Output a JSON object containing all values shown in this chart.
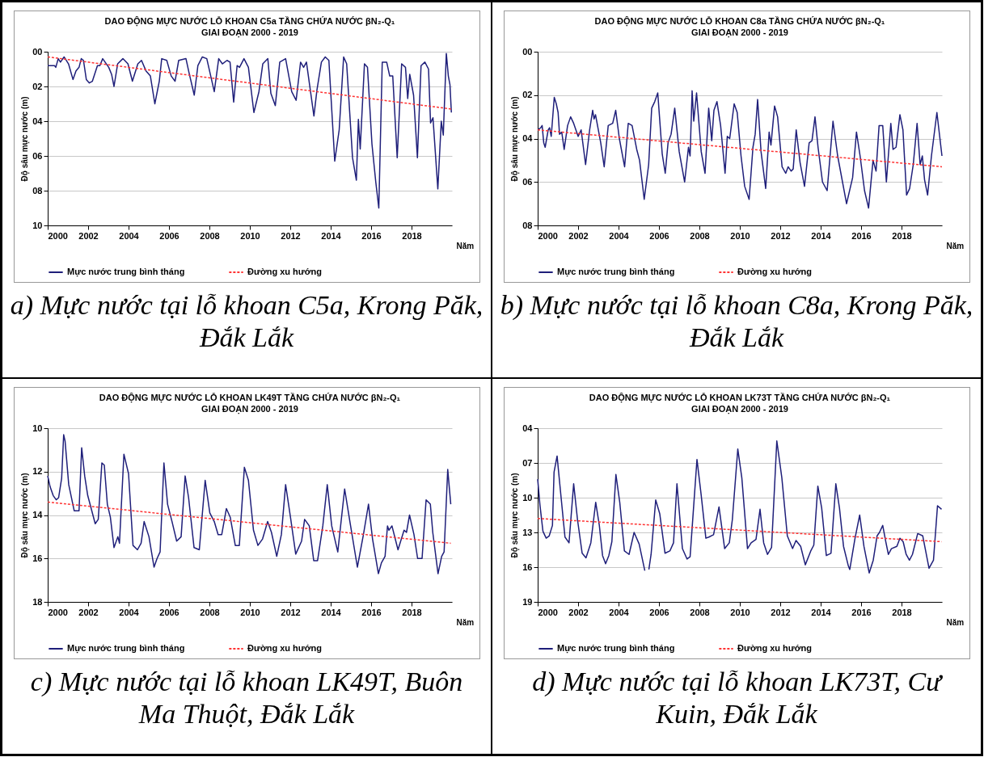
{
  "chart_data": [
    {
      "type": "line",
      "title": "DAO ĐỘNG MỰC NƯỚC LỖ KHOAN C5a TẦNG CHỨA NƯỚC βN₂-Q₁",
      "subtitle": "GIAI ĐOẠN 2000 - 2019",
      "xlabel": "Năm",
      "ylabel": "Độ sâu mực nước (m)",
      "annotations": [
        "a) Mực nước tại lỗ khoan C5a, Krong Păk, Đắk Lắk"
      ],
      "xlim": [
        2000,
        2020
      ],
      "xticks": [
        2000,
        2002,
        2004,
        2006,
        2008,
        2010,
        2012,
        2014,
        2016,
        2018
      ],
      "ylim": [
        10,
        0
      ],
      "yticks": [
        {
          "value": 0,
          "label": "00"
        },
        {
          "value": 2,
          "label": "02"
        },
        {
          "value": 4,
          "label": "04"
        },
        {
          "value": 6,
          "label": "06"
        },
        {
          "value": 8,
          "label": "08"
        },
        10
      ],
      "grid": "y",
      "legend": "bottom",
      "series": [
        {
          "name": "Mực nước trung bình tháng",
          "color": "#1f1f7a",
          "line_style": "solid",
          "x": [
            2000,
            2000.34,
            2000.4,
            2000.52,
            2000.63,
            2000.81,
            2001.03,
            2001.25,
            2001.4,
            2001.55,
            2001.66,
            2001.77,
            2001.91,
            2002.06,
            2002.21,
            2002.46,
            2002.58,
            2002.72,
            2003.02,
            2003.16,
            2003.28,
            2003.46,
            2003.72,
            2003.97,
            2004.19,
            2004.46,
            2004.64,
            2004.86,
            2005.08,
            2005.3,
            2005.52,
            2005.64,
            2005.89,
            2006.11,
            2006.3,
            2006.48,
            2006.84,
            2006.99,
            2007.25,
            2007.43,
            2007.65,
            2007.87,
            2008.24,
            2008.46,
            2008.64,
            2008.87,
            2009.02,
            2009.2,
            2009.37,
            2009.49,
            2009.71,
            2009.93,
            2010.2,
            2010.45,
            2010.64,
            2010.89,
            2011.04,
            2011.26,
            2011.48,
            2011.77,
            2012.07,
            2012.29,
            2012.51,
            2012.66,
            2012.8,
            2013.17,
            2013.32,
            2013.54,
            2013.73,
            2013.91,
            2014.2,
            2014.42,
            2014.64,
            2014.79,
            2015.08,
            2015.27,
            2015.37,
            2015.46,
            2015.67,
            2015.82,
            2016.04,
            2016.23,
            2016.38,
            2016.55,
            2016.77,
            2016.92,
            2017.07,
            2017.29,
            2017.51,
            2017.7,
            2017.81,
            2017.91,
            2018.1,
            2018.29,
            2018.47,
            2018.66,
            2018.84,
            2018.94,
            2019.06,
            2019.3,
            2019.47,
            2019.57,
            2019.72,
            2019.82,
            2019.9,
            2019.97
          ],
          "values": [
            0.8,
            0.8,
            0.9,
            0.4,
            0.6,
            0.3,
            0.7,
            1.6,
            1.1,
            0.9,
            0.4,
            0.5,
            1.6,
            1.8,
            1.7,
            0.8,
            0.8,
            0.4,
            0.9,
            1.3,
            2.0,
            0.7,
            0.4,
            0.7,
            1.7,
            0.7,
            0.5,
            1.1,
            1.4,
            3.0,
            1.7,
            0.4,
            0.5,
            1.4,
            1.7,
            0.5,
            0.4,
            1.2,
            2.5,
            0.8,
            0.3,
            0.4,
            2.3,
            0.4,
            0.7,
            0.5,
            0.6,
            2.9,
            0.8,
            0.9,
            0.4,
            0.9,
            3.5,
            2.3,
            0.7,
            0.4,
            2.4,
            3.1,
            0.6,
            0.4,
            2.3,
            2.8,
            0.6,
            0.9,
            0.6,
            3.7,
            2.2,
            0.6,
            0.3,
            0.5,
            6.3,
            4.5,
            0.3,
            0.7,
            6.1,
            7.4,
            3.9,
            5.6,
            0.7,
            0.9,
            5.3,
            7.5,
            9.0,
            0.6,
            0.6,
            1.4,
            1.4,
            6.1,
            0.7,
            0.9,
            2.7,
            1.3,
            2.5,
            6.1,
            0.8,
            0.6,
            1.0,
            4.1,
            3.8,
            7.9,
            4.0,
            4.8,
            0.1,
            1.4,
            1.9,
            3.5
          ]
        },
        {
          "name": "Đường xu hướng",
          "color": "#ff3333",
          "line_style": "dashed",
          "x": [
            2000,
            2019.97
          ],
          "values": [
            0.3,
            3.3
          ]
        }
      ]
    },
    {
      "type": "line",
      "title": "DAO ĐỘNG MỰC NƯỚC LỖ KHOAN C8a TẦNG CHỨA NƯỚC βN₂-Q₁",
      "subtitle": "GIAI ĐOẠN 2000 - 2019",
      "xlabel": "Năm",
      "ylabel": "Độ sâu mực nước (m)",
      "annotations": [
        "b) Mực nước tại lỗ khoan C8a, Krong Păk, Đắk Lắk"
      ],
      "xlim": [
        2000,
        2020
      ],
      "xticks": [
        2000,
        2002,
        2004,
        2006,
        2008,
        2010,
        2012,
        2014,
        2016,
        2018
      ],
      "ylim": [
        8,
        0
      ],
      "yticks": [
        {
          "value": 0,
          "label": "00"
        },
        {
          "value": 2,
          "label": "02"
        },
        {
          "value": 4,
          "label": "04"
        },
        {
          "value": 6,
          "label": "06"
        },
        {
          "value": 8,
          "label": "08"
        }
      ],
      "grid": "y",
      "legend": "bottom",
      "series": [
        {
          "name": "Mực nước trung bình tháng",
          "color": "#1f1f7a",
          "line_style": "solid",
          "x": [
            2000,
            2000.15,
            2000.22,
            2000.3,
            2000.37,
            2000.52,
            2000.59,
            2000.67,
            2000.82,
            2000.92,
            2001.01,
            2001.08,
            2001.19,
            2001.31,
            2001.48,
            2001.63,
            2001.78,
            2002,
            2002.15,
            2002.37,
            2002.57,
            2002.72,
            2002.79,
            2002.86,
            2003.12,
            2003.29,
            2003.49,
            2003.71,
            2003.86,
            2004.04,
            2004.3,
            2004.48,
            2004.67,
            2004.9,
            2005.04,
            2005.27,
            2005.49,
            2005.64,
            2005.79,
            2005.94,
            2006.16,
            2006.31,
            2006.45,
            2006.6,
            2006.78,
            2007,
            2007.27,
            2007.46,
            2007.54,
            2007.64,
            2007.72,
            2007.86,
            2008.09,
            2008.28,
            2008.46,
            2008.61,
            2008.72,
            2008.87,
            2009.05,
            2009.27,
            2009.38,
            2009.5,
            2009.72,
            2009.87,
            2010.06,
            2010.24,
            2010.46,
            2010.65,
            2010.76,
            2010.88,
            2011.05,
            2011.28,
            2011.45,
            2011.54,
            2011.72,
            2011.87,
            2012.09,
            2012.27,
            2012.39,
            2012.54,
            2012.64,
            2012.79,
            2012.98,
            2013.2,
            2013.43,
            2013.57,
            2013.72,
            2013.87,
            2014.09,
            2014.32,
            2014.61,
            2014.84,
            2015.28,
            2015.58,
            2015.77,
            2015.95,
            2016.17,
            2016.37,
            2016.59,
            2016.74,
            2016.89,
            2017.07,
            2017.25,
            2017.47,
            2017.58,
            2017.73,
            2017.92,
            2018.07,
            2018.25,
            2018.4,
            2018.58,
            2018.77,
            2018.92,
            2019.03,
            2019.14,
            2019.29,
            2019.48,
            2019.75,
            2020
          ],
          "values": [
            3.6,
            3.5,
            3.4,
            4.2,
            4.4,
            3.6,
            3.5,
            3.9,
            2.1,
            2.4,
            2.8,
            3.8,
            3.7,
            4.5,
            3.4,
            3.0,
            3.3,
            3.9,
            3.6,
            5.2,
            3.6,
            2.7,
            3.1,
            2.9,
            4.2,
            5.3,
            3.4,
            3.3,
            2.7,
            4.0,
            5.3,
            3.3,
            3.4,
            4.5,
            5.0,
            6.8,
            5.2,
            2.6,
            2.3,
            1.9,
            4.7,
            5.6,
            4.2,
            3.8,
            2.6,
            4.6,
            6.0,
            4.4,
            4.8,
            1.8,
            3.2,
            1.9,
            4.6,
            5.6,
            2.6,
            4.1,
            2.7,
            2.3,
            3.4,
            5.6,
            3.9,
            4.0,
            2.4,
            2.8,
            4.8,
            6.2,
            6.8,
            4.4,
            3.8,
            2.2,
            4.6,
            6.3,
            3.7,
            4.3,
            2.5,
            3.0,
            5.3,
            5.6,
            5.3,
            5.5,
            5.4,
            3.6,
            5.1,
            6.2,
            4.2,
            4.1,
            3.0,
            4.4,
            6.0,
            6.4,
            3.2,
            4.8,
            7.0,
            5.8,
            3.7,
            4.8,
            6.4,
            7.2,
            5.0,
            5.5,
            3.4,
            3.4,
            6.0,
            3.3,
            4.5,
            4.4,
            2.9,
            3.6,
            6.6,
            6.3,
            5.2,
            3.3,
            5.2,
            4.8,
            5.9,
            6.6,
            4.8,
            2.8,
            4.8
          ]
        },
        {
          "name": "Đường xu hướng",
          "color": "#ff3333",
          "line_style": "dashed",
          "x": [
            2000,
            2020
          ],
          "values": [
            3.6,
            5.3
          ]
        }
      ]
    },
    {
      "type": "line",
      "title": "DAO ĐỘNG MỰC NƯỚC LỖ KHOAN LK49T TẦNG CHỨA NƯỚC βN₂-Q₁",
      "subtitle": "GIAI ĐOẠN 2000 - 2019",
      "xlabel": "Năm",
      "ylabel": "Độ sâu mực nước (m)",
      "annotations": [
        "c) Mực nước tại lỗ khoan LK49T, Buôn Ma Thuột, Đắk Lắk"
      ],
      "xlim": [
        2000,
        2020
      ],
      "xticks": [
        2000,
        2002,
        2004,
        2006,
        2008,
        2010,
        2012,
        2014,
        2016,
        2018
      ],
      "ylim": [
        18,
        10
      ],
      "yticks": [
        10,
        12,
        14,
        16,
        18
      ],
      "grid": "y",
      "legend": "bottom",
      "series": [
        {
          "name": "Mực nước trung bình tháng",
          "color": "#1f1f7a",
          "line_style": "solid",
          "x": [
            2000,
            2000.12,
            2000.27,
            2000.42,
            2000.54,
            2000.69,
            2000.79,
            2000.86,
            2001.04,
            2001.31,
            2001.46,
            2001.55,
            2001.68,
            2001.83,
            2001.98,
            2002.35,
            2002.5,
            2002.68,
            2002.8,
            2002.95,
            2003.1,
            2003.28,
            2003.47,
            2003.55,
            2003.77,
            2004,
            2004.22,
            2004.44,
            2004.62,
            2004.77,
            2005.01,
            2005.26,
            2005.41,
            2005.56,
            2005.75,
            2005.93,
            2006.15,
            2006.38,
            2006.6,
            2006.8,
            2006.97,
            2007.24,
            2007.5,
            2007.79,
            2008.02,
            2008.24,
            2008.43,
            2008.61,
            2008.84,
            2009.03,
            2009.28,
            2009.48,
            2009.73,
            2009.93,
            2010.18,
            2010.4,
            2010.63,
            2010.88,
            2011.07,
            2011.33,
            2011.56,
            2011.77,
            2012.01,
            2012.27,
            2012.56,
            2012.71,
            2012.94,
            2013.16,
            2013.35,
            2013.61,
            2013.83,
            2014.05,
            2014.35,
            2014.69,
            2014.95,
            2015.32,
            2015.62,
            2015.87,
            2016.07,
            2016.36,
            2016.51,
            2016.69,
            2016.81,
            2016.88,
            2017.03,
            2017.33,
            2017.63,
            2017.75,
            2017.9,
            2018.12,
            2018.3,
            2018.52,
            2018.72,
            2018.93,
            2019.05,
            2019.31,
            2019.49,
            2019.61,
            2019.79,
            2019.94
          ],
          "values": [
            12.2,
            12.7,
            13.1,
            13.3,
            13.2,
            12.3,
            10.3,
            10.6,
            12.6,
            13.8,
            13.8,
            13.8,
            10.9,
            12.2,
            13.1,
            14.4,
            14.2,
            11.6,
            11.7,
            13.5,
            14.1,
            15.5,
            15.0,
            15.3,
            11.2,
            12.1,
            15.4,
            15.6,
            15.3,
            14.3,
            15.0,
            16.4,
            16.0,
            15.7,
            11.6,
            13.5,
            14.3,
            15.2,
            15.0,
            12.2,
            13.2,
            15.5,
            15.6,
            12.4,
            13.9,
            14.3,
            14.9,
            14.9,
            13.7,
            14.1,
            15.4,
            15.4,
            11.8,
            12.4,
            14.7,
            15.4,
            15.1,
            14.3,
            14.8,
            15.9,
            14.9,
            12.6,
            14.1,
            15.8,
            15.2,
            14.2,
            14.5,
            16.1,
            16.1,
            14.5,
            12.6,
            14.5,
            15.7,
            12.8,
            14.3,
            16.4,
            14.9,
            13.5,
            15.1,
            16.7,
            16.2,
            15.9,
            14.5,
            14.7,
            14.5,
            15.6,
            14.7,
            14.8,
            14.0,
            14.9,
            16.0,
            16.0,
            13.3,
            13.5,
            14.8,
            16.7,
            15.9,
            15.7,
            11.9,
            13.5
          ]
        },
        {
          "name": "Đường xu hướng",
          "color": "#ff3333",
          "line_style": "dashed",
          "x": [
            2000,
            2019.94
          ],
          "values": [
            13.4,
            15.3
          ]
        }
      ]
    },
    {
      "type": "line",
      "title": "DAO ĐỘNG MỰC NƯỚC LỖ KHOAN LK73T TẦNG CHỨA NƯỚC βN₂-Q₁",
      "subtitle": "GIAI ĐOẠN 2000 - 2019",
      "xlabel": "Năm",
      "ylabel": "Độ sâu mực nước (m)",
      "annotations": [
        "d) Mực nước tại lỗ khoan LK73T, Cư Kuin, Đắk Lắk"
      ],
      "xlim": [
        2000,
        2020
      ],
      "xticks": [
        2000,
        2002,
        2004,
        2006,
        2008,
        2010,
        2012,
        2014,
        2016,
        2018
      ],
      "ylim": [
        19,
        4
      ],
      "yticks": [
        {
          "value": 4,
          "label": "04"
        },
        {
          "value": 7,
          "label": "07"
        },
        10,
        13,
        16,
        19
      ],
      "grid": "y",
      "legend": "bottom",
      "series": [
        {
          "name": "Mực nước trung bình tháng",
          "color": "#1f1f7a",
          "line_style": "solid",
          "x": [
            2000,
            2000.11,
            2000.26,
            2000.42,
            2000.57,
            2000.73,
            2000.81,
            2000.96,
            2001.12,
            2001.35,
            2001.55,
            2001.78,
            2001.97,
            2002.2,
            2002.39,
            2002.63,
            2002.87,
            2003.05,
            2003.21,
            2003.36,
            2003.52,
            2003.67,
            2003.87,
            2004.06,
            2004.29,
            2004.52,
            2004.77,
            2005.02,
            2005.3,
            2005.38,
            2005.5,
            2005.61,
            2005.84,
            2006.04,
            2006.3,
            2006.54,
            2006.72,
            2006.89,
            2007.16,
            2007.39,
            2007.54,
            2007.88,
            2008.09,
            2008.32,
            2008.47,
            2008.7,
            2008.97,
            2009.25,
            2009.48,
            2009.63,
            2009.9,
            2010.1,
            2010.38,
            2010.56,
            2010.8,
            2011,
            2011.18,
            2011.37,
            2011.57,
            2011.83,
            2012.08,
            2012.35,
            2012.61,
            2012.78,
            2013.01,
            2013.24,
            2013.51,
            2013.66,
            2013.86,
            2014.05,
            2014.28,
            2014.51,
            2014.75,
            2014.93,
            2015.13,
            2015.37,
            2015.44,
            2015.7,
            2015.93,
            2016.14,
            2016.4,
            2016.6,
            2016.79,
            2016.91,
            2017.07,
            2017.22,
            2017.35,
            2017.5,
            2017.77,
            2017.92,
            2018.08,
            2018.23,
            2018.39,
            2018.54,
            2018.8,
            2019.05,
            2019.36,
            2019.58,
            2019.78,
            2019.98
          ],
          "values": [
            8.4,
            10.6,
            12.9,
            13.5,
            13.3,
            12.4,
            7.8,
            6.4,
            9.3,
            13.4,
            13.9,
            8.8,
            11.9,
            14.8,
            15.2,
            13.9,
            10.4,
            12.4,
            15.0,
            15.7,
            15.0,
            13.8,
            8.0,
            10.4,
            14.6,
            14.9,
            13.0,
            14.0,
            16.3,
            null,
            16.2,
            14.9,
            10.2,
            11.4,
            14.8,
            14.6,
            13.9,
            8.8,
            14.4,
            15.3,
            15.1,
            6.7,
            9.8,
            13.5,
            13.4,
            13.2,
            10.8,
            14.4,
            13.9,
            11.9,
            5.8,
            8.3,
            14.4,
            13.9,
            13.6,
            11.0,
            13.9,
            14.9,
            14.3,
            5.1,
            8.3,
            13.3,
            14.4,
            13.7,
            14.2,
            15.8,
            14.6,
            14.1,
            9.0,
            10.9,
            15.0,
            14.8,
            8.8,
            10.9,
            14.2,
            15.9,
            16.2,
            13.5,
            11.5,
            14.2,
            16.5,
            15.4,
            13.3,
            13.0,
            12.4,
            13.8,
            14.9,
            14.4,
            14.2,
            13.5,
            13.8,
            14.9,
            15.4,
            14.9,
            13.1,
            13.3,
            16.1,
            15.4,
            10.7,
            11.0
          ]
        },
        {
          "name": "Đường xu hướng",
          "color": "#ff3333",
          "line_style": "dashed",
          "x": [
            2000,
            2019.98
          ],
          "values": [
            11.8,
            13.8
          ]
        }
      ]
    }
  ]
}
